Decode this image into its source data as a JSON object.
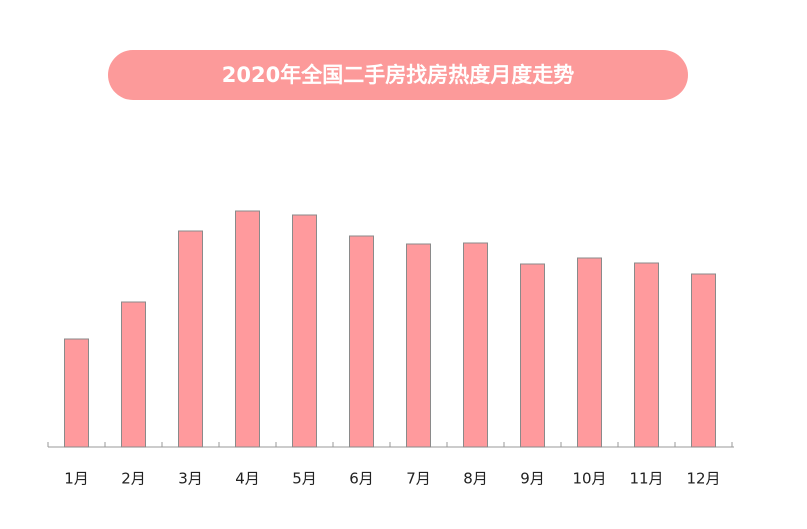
{
  "chart_data": {
    "type": "bar",
    "title": "2020年全国二手房找房热度月度走势",
    "categories": [
      "1月",
      "2月",
      "3月",
      "4月",
      "5月",
      "6月",
      "7月",
      "8月",
      "9月",
      "10月",
      "11月",
      "12月"
    ],
    "values": [
      108,
      145,
      216,
      236,
      232,
      211,
      203,
      204,
      183,
      189,
      184,
      173
    ],
    "color": "#ff9a9d"
  }
}
